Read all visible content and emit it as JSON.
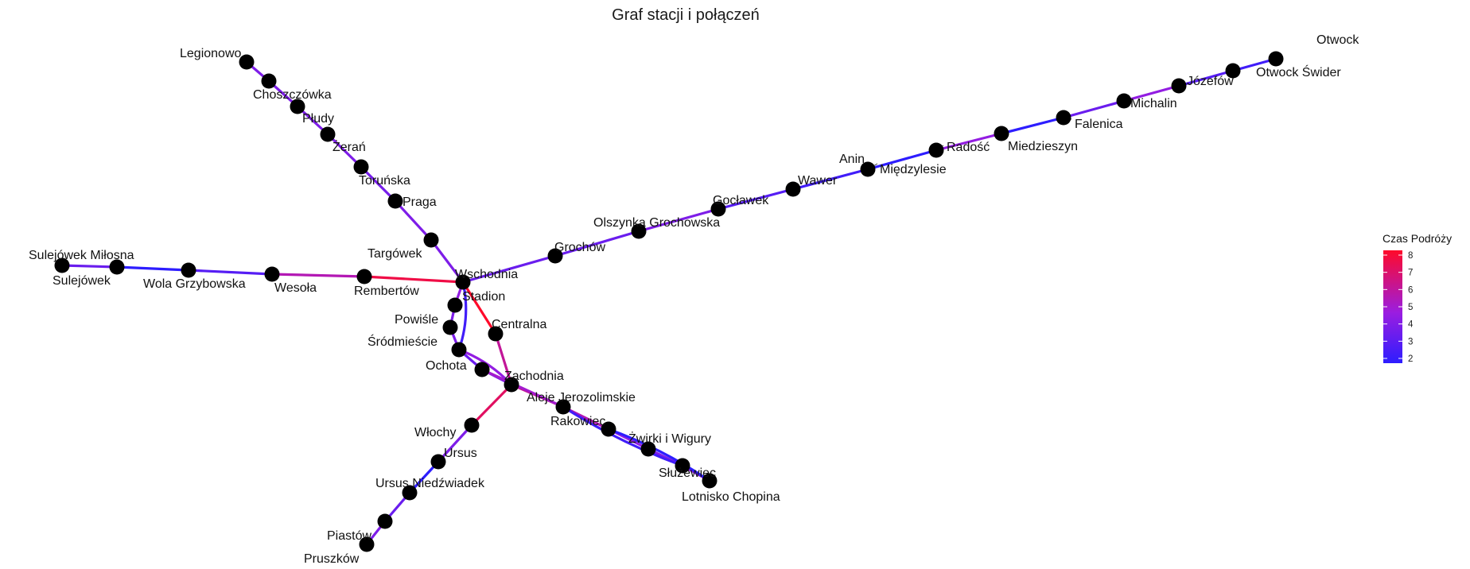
{
  "title": "Graf stacji i połączeń",
  "legend": {
    "title": "Czas Podróży",
    "min": 2,
    "max": 8,
    "ticks": [
      "8",
      "7",
      "6",
      "5",
      "4",
      "3",
      "2"
    ],
    "color_low": "#2d1dff",
    "color_mid": "#9b1de0",
    "color_high": "#ff0a2a"
  },
  "nodes": [
    {
      "id": "legionowo",
      "label": "Legionowo"
    },
    {
      "id": "choszczowka",
      "label": "Choszczówka"
    },
    {
      "id": "pludy",
      "label": "Płudy"
    },
    {
      "id": "zeran",
      "label": "Żerań"
    },
    {
      "id": "torunska",
      "label": "Toruńska"
    },
    {
      "id": "praga",
      "label": "Praga"
    },
    {
      "id": "targowek",
      "label": "Targówek"
    },
    {
      "id": "wschodnia",
      "label": "Wschodnia"
    },
    {
      "id": "stadion",
      "label": "Stadion"
    },
    {
      "id": "powisle",
      "label": "Powiśle"
    },
    {
      "id": "srodmiescie",
      "label": "Śródmieście"
    },
    {
      "id": "ochota",
      "label": "Ochota"
    },
    {
      "id": "centralna",
      "label": "Centralna"
    },
    {
      "id": "zachodnia",
      "label": "Zachodnia"
    },
    {
      "id": "aleje",
      "label": "Aleje Jerozolimskie"
    },
    {
      "id": "rakowiec",
      "label": "Rakowiec"
    },
    {
      "id": "zwirki",
      "label": "Żwirki i Wigury"
    },
    {
      "id": "sluzewiec",
      "label": "Służewiec"
    },
    {
      "id": "lotnisko",
      "label": "Lotnisko Chopina"
    },
    {
      "id": "wlochy",
      "label": "Włochy"
    },
    {
      "id": "ursus",
      "label": "Ursus"
    },
    {
      "id": "ursus_n",
      "label": "Ursus Niedźwiadek"
    },
    {
      "id": "piastow",
      "label": "Piastów"
    },
    {
      "id": "pruszkow",
      "label": "Pruszków"
    },
    {
      "id": "rembertow",
      "label": "Rembertów"
    },
    {
      "id": "wesola",
      "label": "Wesoła"
    },
    {
      "id": "wola_g",
      "label": "Wola Grzybowska"
    },
    {
      "id": "sulejowek_m",
      "label": "Sulejówek Miłosna"
    },
    {
      "id": "sulejowek",
      "label": "Sulejówek"
    },
    {
      "id": "grochow",
      "label": "Grochów"
    },
    {
      "id": "olszynka",
      "label": "Olszynka Grochowska"
    },
    {
      "id": "goclawek",
      "label": "Gocławek"
    },
    {
      "id": "wawer",
      "label": "Wawer"
    },
    {
      "id": "anin",
      "label": "Anin"
    },
    {
      "id": "miedzylesie",
      "label": "Międzylesie"
    },
    {
      "id": "radosc",
      "label": "Radość"
    },
    {
      "id": "miedzieszyn",
      "label": "Miedzieszyn"
    },
    {
      "id": "falenica",
      "label": "Falenica"
    },
    {
      "id": "michalin",
      "label": "Michalin"
    },
    {
      "id": "jozefow",
      "label": "Józefów"
    },
    {
      "id": "otwock_swider",
      "label": "Otwock Świder"
    },
    {
      "id": "otwock",
      "label": "Otwock"
    }
  ],
  "edges": [
    {
      "from": "legionowo",
      "to": "choszczowka",
      "time": 4
    },
    {
      "from": "choszczowka",
      "to": "pludy",
      "time": 4
    },
    {
      "from": "pludy",
      "to": "zeran",
      "time": 4
    },
    {
      "from": "zeran",
      "to": "torunska",
      "time": 4
    },
    {
      "from": "torunska",
      "to": "praga",
      "time": 3.8
    },
    {
      "from": "praga",
      "to": "targowek",
      "time": 4
    },
    {
      "from": "targowek",
      "to": "wschodnia",
      "time": 4
    },
    {
      "from": "wschodnia",
      "to": "rembertow",
      "time": 7.5
    },
    {
      "from": "rembertow",
      "to": "wesola",
      "time": 5.5
    },
    {
      "from": "wesola",
      "to": "wola_g",
      "time": 3
    },
    {
      "from": "wola_g",
      "to": "sulejowek_m",
      "time": 2
    },
    {
      "from": "sulejowek_m",
      "to": "sulejowek",
      "time": 3.5
    },
    {
      "from": "wschodnia",
      "to": "grochow",
      "time": 3.5
    },
    {
      "from": "grochow",
      "to": "olszynka",
      "time": 3.5
    },
    {
      "from": "olszynka",
      "to": "goclawek",
      "time": 4
    },
    {
      "from": "goclawek",
      "to": "wawer",
      "time": 3
    },
    {
      "from": "wawer",
      "to": "anin",
      "time": 2.5
    },
    {
      "from": "anin",
      "to": "radosc",
      "time": 2
    },
    {
      "from": "radosc",
      "to": "miedzieszyn",
      "time": 4.5
    },
    {
      "from": "miedzieszyn",
      "to": "falenica",
      "time": 2
    },
    {
      "from": "falenica",
      "to": "michalin",
      "time": 3.5
    },
    {
      "from": "michalin",
      "to": "jozefow",
      "time": 4.5
    },
    {
      "from": "jozefow",
      "to": "otwock_swider",
      "time": 3
    },
    {
      "from": "otwock_swider",
      "to": "otwock",
      "time": 2.5
    },
    {
      "from": "wschodnia",
      "to": "stadion",
      "time": 4.5
    },
    {
      "from": "stadion",
      "to": "powisle",
      "time": 4
    },
    {
      "from": "powisle",
      "to": "srodmiescie",
      "time": 4
    },
    {
      "from": "srodmiescie",
      "to": "ochota",
      "time": 3.5
    },
    {
      "from": "ochota",
      "to": "zachodnia",
      "time": 4
    },
    {
      "from": "wschodnia",
      "to": "srodmiescie",
      "time": 2.5
    },
    {
      "from": "srodmiescie",
      "to": "zachodnia",
      "time": 4.5
    },
    {
      "from": "wschodnia",
      "to": "centralna",
      "time": 8
    },
    {
      "from": "centralna",
      "to": "zachodnia",
      "time": 6
    },
    {
      "from": "zachodnia",
      "to": "aleje",
      "time": 6
    },
    {
      "from": "aleje",
      "to": "rakowiec",
      "time": 5.5
    },
    {
      "from": "rakowiec",
      "to": "zwirki",
      "time": 4.5
    },
    {
      "from": "zwirki",
      "to": "sluzewiec",
      "time": 4
    },
    {
      "from": "sluzewiec",
      "to": "lotnisko",
      "time": 4.5
    },
    {
      "from": "aleje",
      "to": "sluzewiec",
      "time": 2.5
    },
    {
      "from": "rakowiec",
      "to": "lotnisko",
      "time": 2
    },
    {
      "from": "ochota",
      "to": "aleje",
      "time": 5
    },
    {
      "from": "zachodnia",
      "to": "wlochy",
      "time": 7
    },
    {
      "from": "wlochy",
      "to": "ursus",
      "time": 4
    },
    {
      "from": "ursus",
      "to": "ursus_n",
      "time": 2
    },
    {
      "from": "ursus_n",
      "to": "piastow",
      "time": 3.5
    },
    {
      "from": "piastow",
      "to": "pruszkow",
      "time": 4
    }
  ]
}
